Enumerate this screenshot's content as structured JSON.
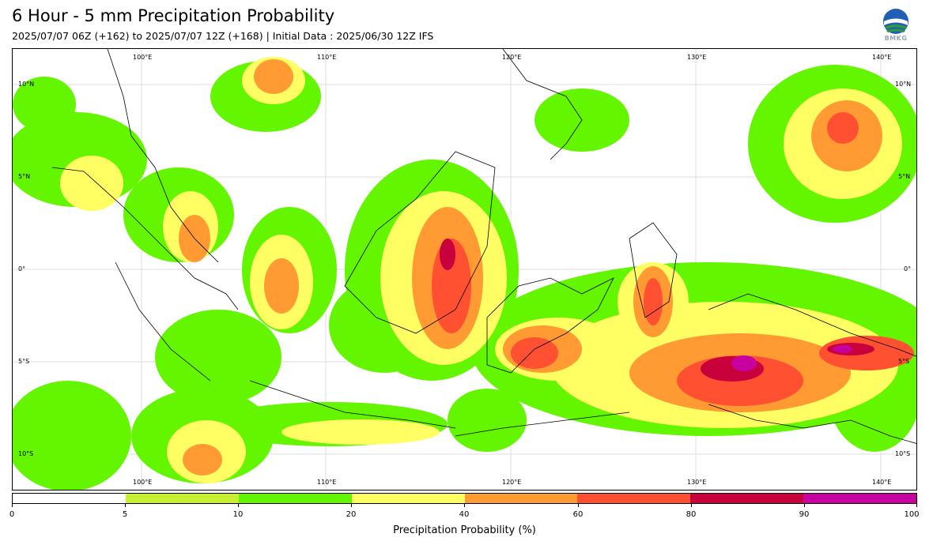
{
  "header": {
    "title": "6 Hour - 5 mm Precipitation Probability",
    "subtitle": "2025/07/07 06Z (+162) to 2025/07/07 12Z (+168) | Initial Data : 2025/06/30 12Z IFS",
    "logo_text": "BMKG"
  },
  "map": {
    "lon_labels": [
      "100°E",
      "110°E",
      "120°E",
      "130°E",
      "140°E"
    ],
    "lat_labels": [
      "10°N",
      "5°N",
      "0°",
      "5°S",
      "10°S"
    ],
    "colors": {
      "land_outline": "#000000",
      "grid": "#dddddd"
    }
  },
  "colorbar": {
    "bounds": [
      "0",
      "5",
      "10",
      "20",
      "40",
      "60",
      "80",
      "90",
      "100"
    ],
    "colors": [
      "#ffffff",
      "#c8f032",
      "#64f500",
      "#ffff64",
      "#ff9b32",
      "#ff5032",
      "#c8003c",
      "#c800a0"
    ],
    "label": "Precipitation Probability (%)"
  }
}
